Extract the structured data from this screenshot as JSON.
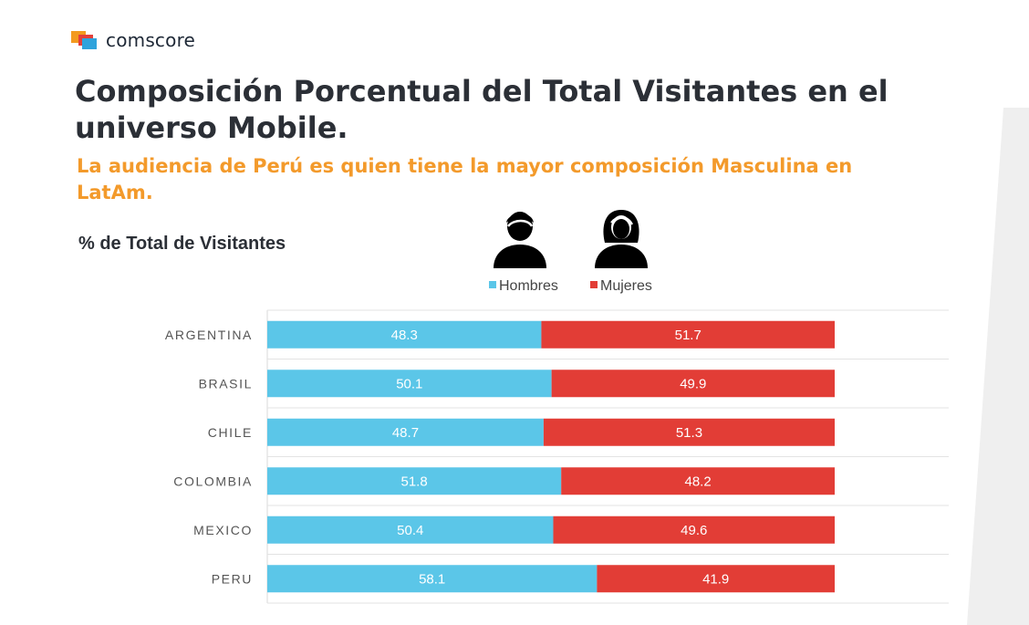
{
  "brand": {
    "name": "comscore"
  },
  "header": {
    "title": "Composición Porcentual del Total Visitantes en el universo Mobile.",
    "subtitle": "La audiencia de Perú es quien tiene la mayor composición Masculina en LatAm."
  },
  "icons": {
    "male": "man-icon",
    "female": "woman-icon"
  },
  "colors": {
    "hombres": "#5bc6e8",
    "mujeres": "#e23d36",
    "accent": "#f39a2b"
  },
  "chart_data": {
    "type": "bar",
    "orientation": "horizontal",
    "stacked": true,
    "title": "% de Total de Visitantes",
    "categories": [
      "ARGENTINA",
      "BRASIL",
      "CHILE",
      "COLOMBIA",
      "MEXICO",
      "PERU"
    ],
    "series": [
      {
        "name": "Hombres",
        "color": "#5bc6e8",
        "values": [
          48.3,
          50.1,
          48.7,
          51.8,
          50.4,
          58.1
        ]
      },
      {
        "name": "Mujeres",
        "color": "#e23d36",
        "values": [
          51.7,
          49.9,
          51.3,
          48.2,
          49.6,
          41.9
        ]
      }
    ],
    "xlim": [
      0,
      100
    ],
    "legend": "top-center",
    "grid": true
  }
}
